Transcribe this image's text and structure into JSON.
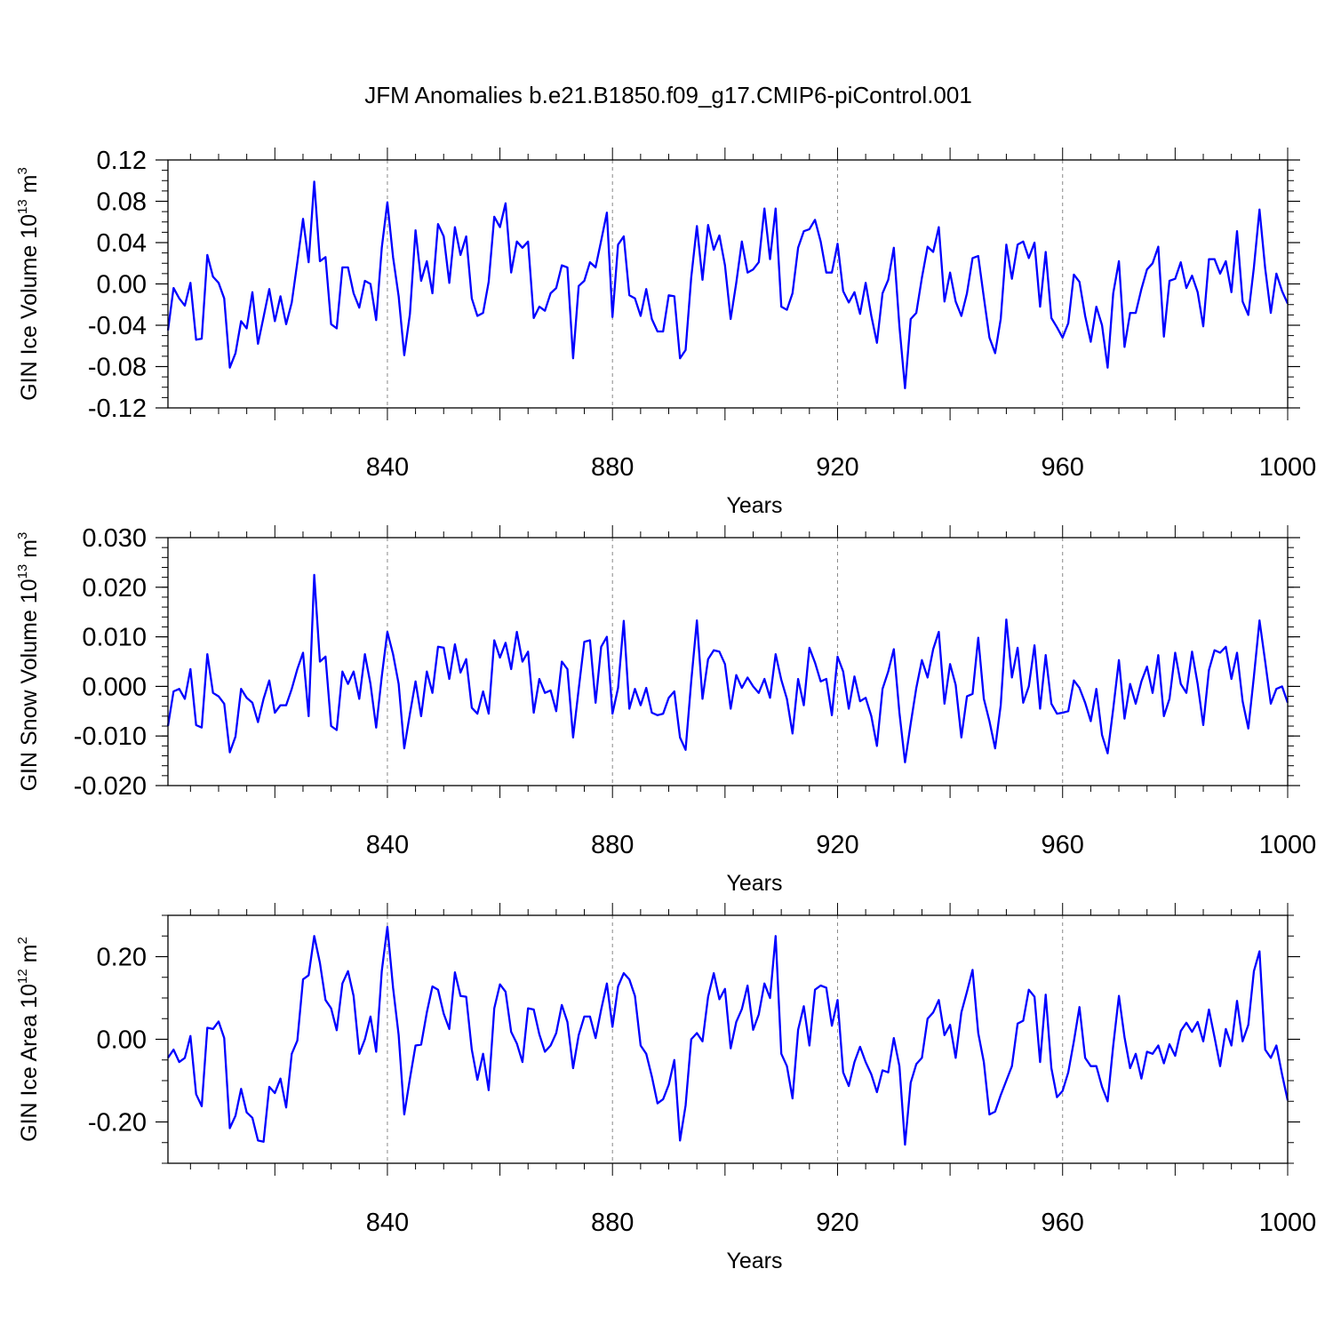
{
  "title": "JFM Anomalies b.e21.B1850.f09_g17.CMIP6-piControl.001",
  "chart_data": [
    {
      "type": "line",
      "ylabel": {
        "text": "GIN Ice Volume 10",
        "exp": "13",
        "unit": " m",
        "unit_exp": "3"
      },
      "xlabel": "Years",
      "xlim": [
        801,
        1000
      ],
      "ylim": [
        -0.12,
        0.12
      ],
      "xticks": [
        "840",
        "880",
        "920",
        "960",
        "1000"
      ],
      "yticks": [
        "0.12",
        "0.08",
        "0.04",
        "0.00",
        "-0.04",
        "-0.08",
        "-0.12"
      ],
      "ytick_values": [
        0.12,
        0.08,
        0.04,
        0.0,
        -0.04,
        -0.08,
        -0.12
      ],
      "minor_step": 0.01,
      "vgrid": [
        840,
        880,
        920,
        960
      ],
      "color": "#0000ff",
      "series": [
        {
          "x_start": 801,
          "values": [
            -0.045,
            -0.004,
            -0.014,
            -0.021,
            0.001,
            -0.054,
            -0.053,
            0.028,
            0.007,
            0.001,
            -0.014,
            -0.081,
            -0.067,
            -0.036,
            -0.043,
            -0.008,
            -0.058,
            -0.032,
            -0.005,
            -0.036,
            -0.012,
            -0.039,
            -0.018,
            0.021,
            0.063,
            0.021,
            0.099,
            0.022,
            0.026,
            -0.039,
            -0.043,
            0.016,
            0.016,
            -0.009,
            -0.023,
            0.003,
            0.0,
            -0.035,
            0.035,
            0.079,
            0.026,
            -0.012,
            -0.069,
            -0.029,
            0.052,
            0.003,
            0.022,
            -0.009,
            0.058,
            0.046,
            0.001,
            0.055,
            0.028,
            0.046,
            -0.014,
            -0.031,
            -0.028,
            0.002,
            0.065,
            0.055,
            0.078,
            0.011,
            0.041,
            0.035,
            0.041,
            -0.033,
            -0.022,
            -0.026,
            -0.009,
            -0.004,
            0.018,
            0.016,
            -0.072,
            -0.002,
            0.003,
            0.021,
            0.016,
            0.042,
            0.069,
            -0.032,
            0.038,
            0.046,
            -0.011,
            -0.014,
            -0.031,
            -0.005,
            -0.034,
            -0.046,
            -0.046,
            -0.011,
            -0.012,
            -0.072,
            -0.064,
            0.006,
            0.056,
            0.004,
            0.057,
            0.033,
            0.047,
            0.018,
            -0.034,
            0.001,
            0.041,
            0.011,
            0.014,
            0.021,
            0.073,
            0.024,
            0.073,
            -0.022,
            -0.025,
            -0.009,
            0.035,
            0.051,
            0.053,
            0.062,
            0.041,
            0.011,
            0.011,
            0.039,
            -0.007,
            -0.018,
            -0.008,
            -0.029,
            0.001,
            -0.031,
            -0.057,
            -0.009,
            0.004,
            0.035,
            -0.041,
            -0.101,
            -0.034,
            -0.028,
            0.006,
            0.036,
            0.031,
            0.055,
            -0.017,
            0.011,
            -0.017,
            -0.031,
            -0.009,
            0.025,
            0.027,
            -0.013,
            -0.052,
            -0.067,
            -0.034,
            0.038,
            0.005,
            0.038,
            0.041,
            0.025,
            0.04,
            -0.022,
            0.031,
            -0.033,
            -0.042,
            -0.052,
            -0.038,
            0.009,
            0.002,
            -0.031,
            -0.056,
            -0.022,
            -0.04,
            -0.081,
            -0.009,
            0.022,
            -0.061,
            -0.028,
            -0.028,
            -0.005,
            0.014,
            0.02,
            0.036,
            -0.051,
            0.003,
            0.005,
            0.021,
            -0.004,
            0.008,
            -0.008,
            -0.041,
            0.024,
            0.024,
            0.01,
            0.022,
            -0.008,
            0.051,
            -0.017,
            -0.03,
            0.016,
            0.072,
            0.015,
            -0.028,
            0.01,
            -0.007,
            -0.019
          ]
        }
      ]
    },
    {
      "type": "line",
      "ylabel": {
        "text": "GIN Snow Volume 10",
        "exp": "13",
        "unit": " m",
        "unit_exp": "3"
      },
      "xlabel": "Years",
      "xlim": [
        801,
        1000
      ],
      "ylim": [
        -0.02,
        0.03
      ],
      "xticks": [
        "840",
        "880",
        "920",
        "960",
        "1000"
      ],
      "yticks": [
        "0.030",
        "0.020",
        "0.010",
        "0.000",
        "-0.010",
        "-0.020"
      ],
      "ytick_values": [
        0.03,
        0.02,
        0.01,
        0.0,
        -0.01,
        -0.02
      ],
      "minor_step": 0.002,
      "vgrid": [
        840,
        880,
        920,
        960
      ],
      "color": "#0000ff",
      "series": [
        {
          "x_start": 801,
          "values": [
            -0.008,
            -0.001,
            -0.0005,
            -0.0025,
            0.0035,
            -0.0078,
            -0.0083,
            0.0065,
            -0.0013,
            -0.002,
            -0.0035,
            -0.0133,
            -0.0101,
            -0.0005,
            -0.0023,
            -0.0033,
            -0.0072,
            -0.0025,
            0.0012,
            -0.0053,
            -0.0038,
            -0.0038,
            -0.0005,
            0.0035,
            0.0068,
            -0.006,
            0.0225,
            0.005,
            0.006,
            -0.008,
            -0.0088,
            0.003,
            0.0005,
            0.003,
            -0.0025,
            0.0065,
            0.0005,
            -0.0083,
            0.002,
            0.011,
            0.0065,
            0.0005,
            -0.0125,
            -0.0055,
            0.001,
            -0.006,
            0.003,
            -0.0013,
            0.008,
            0.0078,
            0.0015,
            0.0085,
            0.0028,
            0.0055,
            -0.0043,
            -0.0055,
            -0.001,
            -0.0055,
            0.0093,
            0.0058,
            0.0088,
            0.0035,
            0.011,
            0.005,
            0.007,
            -0.0053,
            0.0015,
            -0.0013,
            -0.0008,
            -0.005,
            0.005,
            0.0035,
            -0.0103,
            -0.0005,
            0.009,
            0.0093,
            -0.0033,
            0.008,
            0.01,
            -0.0055,
            -0.0003,
            0.0132,
            -0.0045,
            -0.0005,
            -0.0038,
            -0.0003,
            -0.0053,
            -0.0058,
            -0.0055,
            -0.0023,
            -0.001,
            -0.0103,
            -0.0128,
            0.001,
            0.0133,
            -0.0025,
            0.0055,
            0.0073,
            0.007,
            0.0045,
            -0.0045,
            0.0023,
            -0.0003,
            0.0018,
            0.0,
            -0.0013,
            0.0015,
            -0.0023,
            0.0065,
            0.0013,
            -0.0025,
            -0.0095,
            0.0015,
            -0.0038,
            0.0078,
            0.0048,
            0.001,
            0.0015,
            -0.0058,
            0.006,
            0.003,
            -0.0045,
            0.002,
            -0.003,
            -0.0023,
            -0.006,
            -0.012,
            -0.0005,
            0.003,
            0.0075,
            -0.0053,
            -0.0153,
            -0.0075,
            -0.0003,
            0.0053,
            0.0018,
            0.0075,
            0.011,
            -0.0035,
            0.0045,
            0.0003,
            -0.0103,
            -0.002,
            -0.0015,
            0.0098,
            -0.0025,
            -0.007,
            -0.0125,
            -0.0038,
            0.0135,
            0.0018,
            0.0078,
            -0.0033,
            0.0,
            0.0083,
            -0.0045,
            0.0063,
            -0.0035,
            -0.0055,
            -0.0053,
            -0.005,
            0.0012,
            -0.0003,
            -0.0033,
            -0.007,
            -0.0005,
            -0.0098,
            -0.0135,
            -0.0045,
            0.0053,
            -0.0065,
            0.0005,
            -0.0035,
            0.001,
            0.004,
            -0.0013,
            0.0063,
            -0.006,
            -0.0025,
            0.0068,
            0.0005,
            -0.0013,
            0.007,
            0.0005,
            -0.0078,
            0.0033,
            0.0073,
            0.0068,
            0.008,
            0.0015,
            0.0068,
            -0.003,
            -0.0085,
            0.002,
            0.0133,
            0.005,
            -0.0035,
            -0.0005,
            0.0,
            -0.0033
          ]
        }
      ]
    },
    {
      "type": "line",
      "ylabel": {
        "text": "GIN Ice Area 10",
        "exp": "12",
        "unit": " m",
        "unit_exp": "2"
      },
      "xlabel": "Years",
      "xlim": [
        801,
        1000
      ],
      "ylim": [
        -0.3,
        0.3
      ],
      "xticks": [
        "840",
        "880",
        "920",
        "960",
        "1000"
      ],
      "yticks": [
        "0.20",
        "0.00",
        "-0.20"
      ],
      "ytick_values": [
        0.2,
        0.0,
        -0.2
      ],
      "minor_step": 0.05,
      "vgrid": [
        840,
        880,
        920,
        960
      ],
      "color": "#0000ff",
      "series": [
        {
          "x_start": 801,
          "values": [
            -0.045,
            -0.025,
            -0.055,
            -0.045,
            0.008,
            -0.133,
            -0.162,
            0.028,
            0.025,
            0.043,
            0.003,
            -0.215,
            -0.185,
            -0.12,
            -0.177,
            -0.19,
            -0.245,
            -0.248,
            -0.115,
            -0.13,
            -0.095,
            -0.165,
            -0.035,
            -0.003,
            0.145,
            0.155,
            0.25,
            0.185,
            0.095,
            0.075,
            0.022,
            0.135,
            0.165,
            0.105,
            -0.035,
            0.0,
            0.055,
            -0.03,
            0.165,
            0.272,
            0.125,
            0.01,
            -0.182,
            -0.095,
            -0.015,
            -0.013,
            0.065,
            0.128,
            0.12,
            0.062,
            0.025,
            0.162,
            0.105,
            0.103,
            -0.025,
            -0.098,
            -0.035,
            -0.123,
            0.075,
            0.133,
            0.115,
            0.018,
            -0.01,
            -0.055,
            0.075,
            0.072,
            0.012,
            -0.03,
            -0.015,
            0.015,
            0.083,
            0.042,
            -0.07,
            0.01,
            0.055,
            0.055,
            0.003,
            0.072,
            0.135,
            0.03,
            0.128,
            0.16,
            0.145,
            0.105,
            -0.015,
            -0.035,
            -0.09,
            -0.155,
            -0.145,
            -0.11,
            -0.05,
            -0.245,
            -0.16,
            0.0,
            0.015,
            -0.005,
            0.103,
            0.16,
            0.097,
            0.122,
            -0.022,
            0.042,
            0.073,
            0.13,
            0.023,
            0.06,
            0.135,
            0.1,
            0.25,
            -0.035,
            -0.065,
            -0.143,
            0.023,
            0.08,
            -0.015,
            0.12,
            0.13,
            0.125,
            0.033,
            0.095,
            -0.08,
            -0.113,
            -0.055,
            -0.018,
            -0.055,
            -0.085,
            -0.128,
            -0.075,
            -0.08,
            0.003,
            -0.065,
            -0.255,
            -0.105,
            -0.06,
            -0.045,
            0.05,
            0.065,
            0.095,
            0.01,
            0.035,
            -0.045,
            0.065,
            0.115,
            0.168,
            0.015,
            -0.055,
            -0.182,
            -0.175,
            -0.135,
            -0.1,
            -0.065,
            0.038,
            0.045,
            0.12,
            0.103,
            -0.055,
            0.108,
            -0.07,
            -0.14,
            -0.125,
            -0.08,
            -0.005,
            0.078,
            -0.045,
            -0.065,
            -0.065,
            -0.115,
            -0.15,
            -0.015,
            0.105,
            0.005,
            -0.07,
            -0.035,
            -0.095,
            -0.03,
            -0.035,
            -0.015,
            -0.058,
            -0.012,
            -0.04,
            0.02,
            0.04,
            0.018,
            0.042,
            -0.005,
            0.072,
            0.005,
            -0.065,
            0.025,
            -0.015,
            0.093,
            -0.005,
            0.035,
            0.165,
            0.213,
            -0.025,
            -0.045,
            -0.015,
            -0.085,
            -0.148
          ]
        }
      ]
    }
  ]
}
